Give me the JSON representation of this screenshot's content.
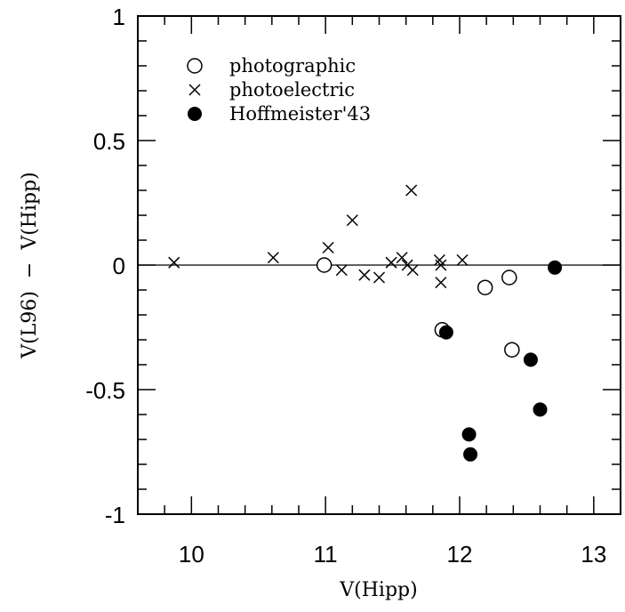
{
  "chart_data": {
    "type": "scatter",
    "xlabel": "V(Hipp)",
    "ylabel": "V(L96)  −  V(Hipp)",
    "xlim": [
      9.6,
      13.2
    ],
    "ylim": [
      -1,
      1
    ],
    "xticks": [
      10,
      11,
      12,
      13
    ],
    "xtick_labels": [
      "10",
      "11",
      "12",
      "13"
    ],
    "yticks": [
      -1,
      -0.5,
      0,
      0.5,
      1
    ],
    "ytick_labels": [
      "-1",
      "-0.5",
      "0",
      "0.5",
      "1"
    ],
    "reference_line_y": 0,
    "grid": false,
    "legend_placement": "top-left",
    "series": [
      {
        "name": "photographic",
        "marker": "open-circle",
        "x": [
          10.99,
          11.87,
          12.19,
          12.37,
          12.39
        ],
        "y": [
          0.0,
          -0.26,
          -0.09,
          -0.05,
          -0.34
        ]
      },
      {
        "name": "photoelectric",
        "marker": "cross",
        "x": [
          9.87,
          10.61,
          11.02,
          11.12,
          11.2,
          11.29,
          11.4,
          11.49,
          11.57,
          11.61,
          11.64,
          11.65,
          11.85,
          11.86,
          11.86,
          12.02
        ],
        "y": [
          0.01,
          0.03,
          0.07,
          -0.02,
          0.18,
          -0.04,
          -0.05,
          0.01,
          0.03,
          0.0,
          0.3,
          -0.02,
          0.02,
          0.0,
          -0.07,
          0.02
        ]
      },
      {
        "name": "Hoffmeister'43",
        "marker": "filled-circle",
        "x": [
          11.9,
          12.07,
          12.08,
          12.53,
          12.6,
          12.71
        ],
        "y": [
          -0.27,
          -0.68,
          -0.76,
          -0.38,
          -0.58,
          -0.01
        ]
      }
    ]
  }
}
